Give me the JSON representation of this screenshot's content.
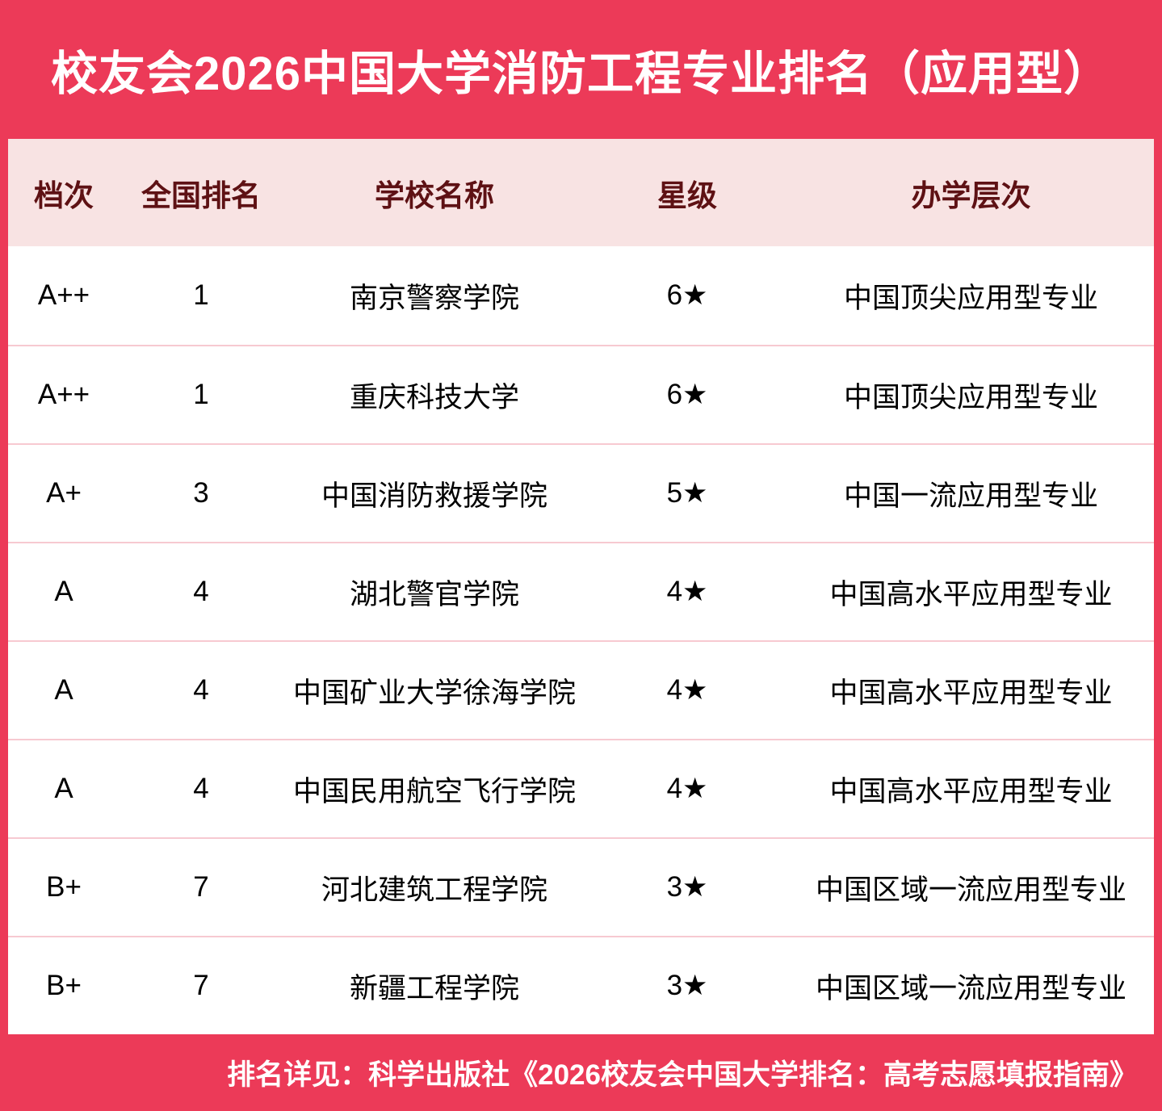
{
  "chart_data": {
    "type": "table",
    "title": "校友会2026中国大学消防工程专业排名（应用型）",
    "columns": [
      "档次",
      "全国排名",
      "学校名称",
      "星级",
      "办学层次"
    ],
    "rows": [
      [
        "A++",
        "1",
        "南京警察学院",
        "6★",
        "中国顶尖应用型专业"
      ],
      [
        "A++",
        "1",
        "重庆科技大学",
        "6★",
        "中国顶尖应用型专业"
      ],
      [
        "A+",
        "3",
        "中国消防救援学院",
        "5★",
        "中国一流应用型专业"
      ],
      [
        "A",
        "4",
        "湖北警官学院",
        "4★",
        "中国高水平应用型专业"
      ],
      [
        "A",
        "4",
        "中国矿业大学徐海学院",
        "4★",
        "中国高水平应用型专业"
      ],
      [
        "A",
        "4",
        "中国民用航空飞行学院",
        "4★",
        "中国高水平应用型专业"
      ],
      [
        "B+",
        "7",
        "河北建筑工程学院",
        "3★",
        "中国区域一流应用型专业"
      ],
      [
        "B+",
        "7",
        "新疆工程学院",
        "3★",
        "中国区域一流应用型专业"
      ]
    ],
    "footer_note": "排名详见：科学出版社《2026校友会中国大学排名：高考志愿填报指南》",
    "layout": {
      "grid": "off",
      "header_position": "top"
    },
    "colors": {
      "background_red": "#EC3A58",
      "header_pink": "#F8E3E3",
      "header_text": "#5E1114",
      "row_divider": "#F7C9D1",
      "row_background": "#FFFFFF",
      "body_text": "#000000",
      "title_text": "#FFFFFF"
    }
  }
}
